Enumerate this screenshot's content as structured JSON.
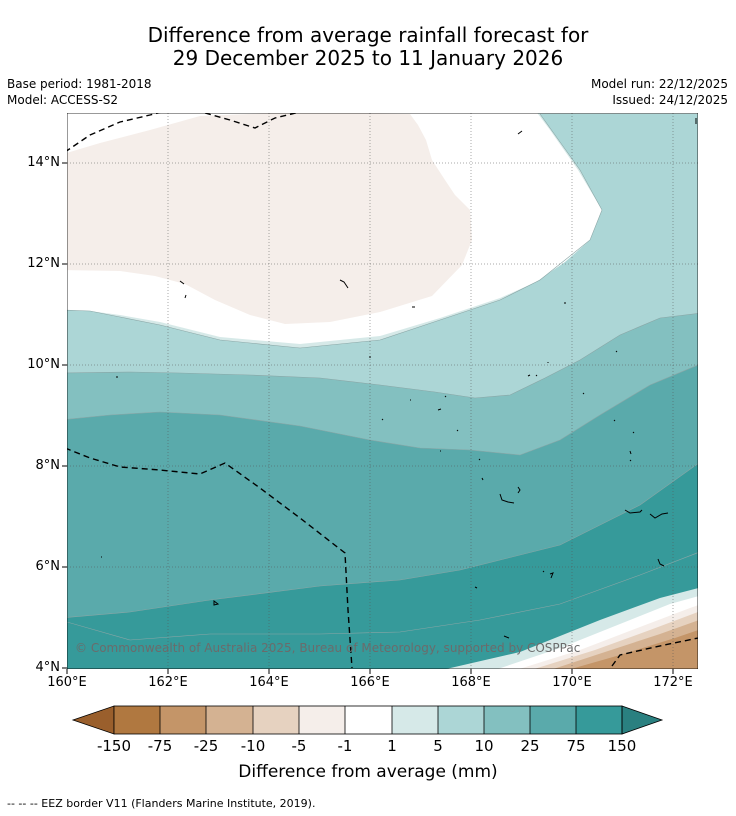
{
  "title": {
    "line1": "Difference from average rainfall forecast for",
    "line2": "29 December 2025 to 11 January 2026"
  },
  "meta": {
    "base_period": "Base period: 1981-2018",
    "model": "Model: ACCESS-S2",
    "model_run": "Model run: 22/12/2025",
    "issued": "Issued: 24/12/2025"
  },
  "map": {
    "lat_labels": [
      "14°N",
      "12°N",
      "10°N",
      "8°N",
      "6°N",
      "4°N"
    ],
    "lon_labels": [
      "160°E",
      "162°E",
      "164°E",
      "166°E",
      "168°E",
      "170°E",
      "172°E"
    ],
    "copyright": "© Commonwealth of Australia 2025, Bureau of Meteorology, supported by COSPPac"
  },
  "colorbar": {
    "labels": [
      "-150",
      "-75",
      "-25",
      "-10",
      "-5",
      "-1",
      "1",
      "5",
      "10",
      "25",
      "75",
      "150"
    ],
    "colors": {
      "lt150": "#9a5f2c",
      "m150_75": "#b07840",
      "m75_25": "#c49568",
      "m25_10": "#d4b292",
      "m10_5": "#e6d2c0",
      "m5_1": "#f5eeea",
      "m1_1": "#ffffff",
      "p1_5": "#d6e9e8",
      "p5_10": "#acd6d6",
      "p10_25": "#83c0c0",
      "p25_75": "#5aaaab",
      "p75_150": "#369a9a",
      "gt150": "#2a8080"
    },
    "title": "Difference from average (mm)"
  },
  "footnote": "--  --  -- EEZ border V11 (Flanders Marine Institute, 2019)."
}
